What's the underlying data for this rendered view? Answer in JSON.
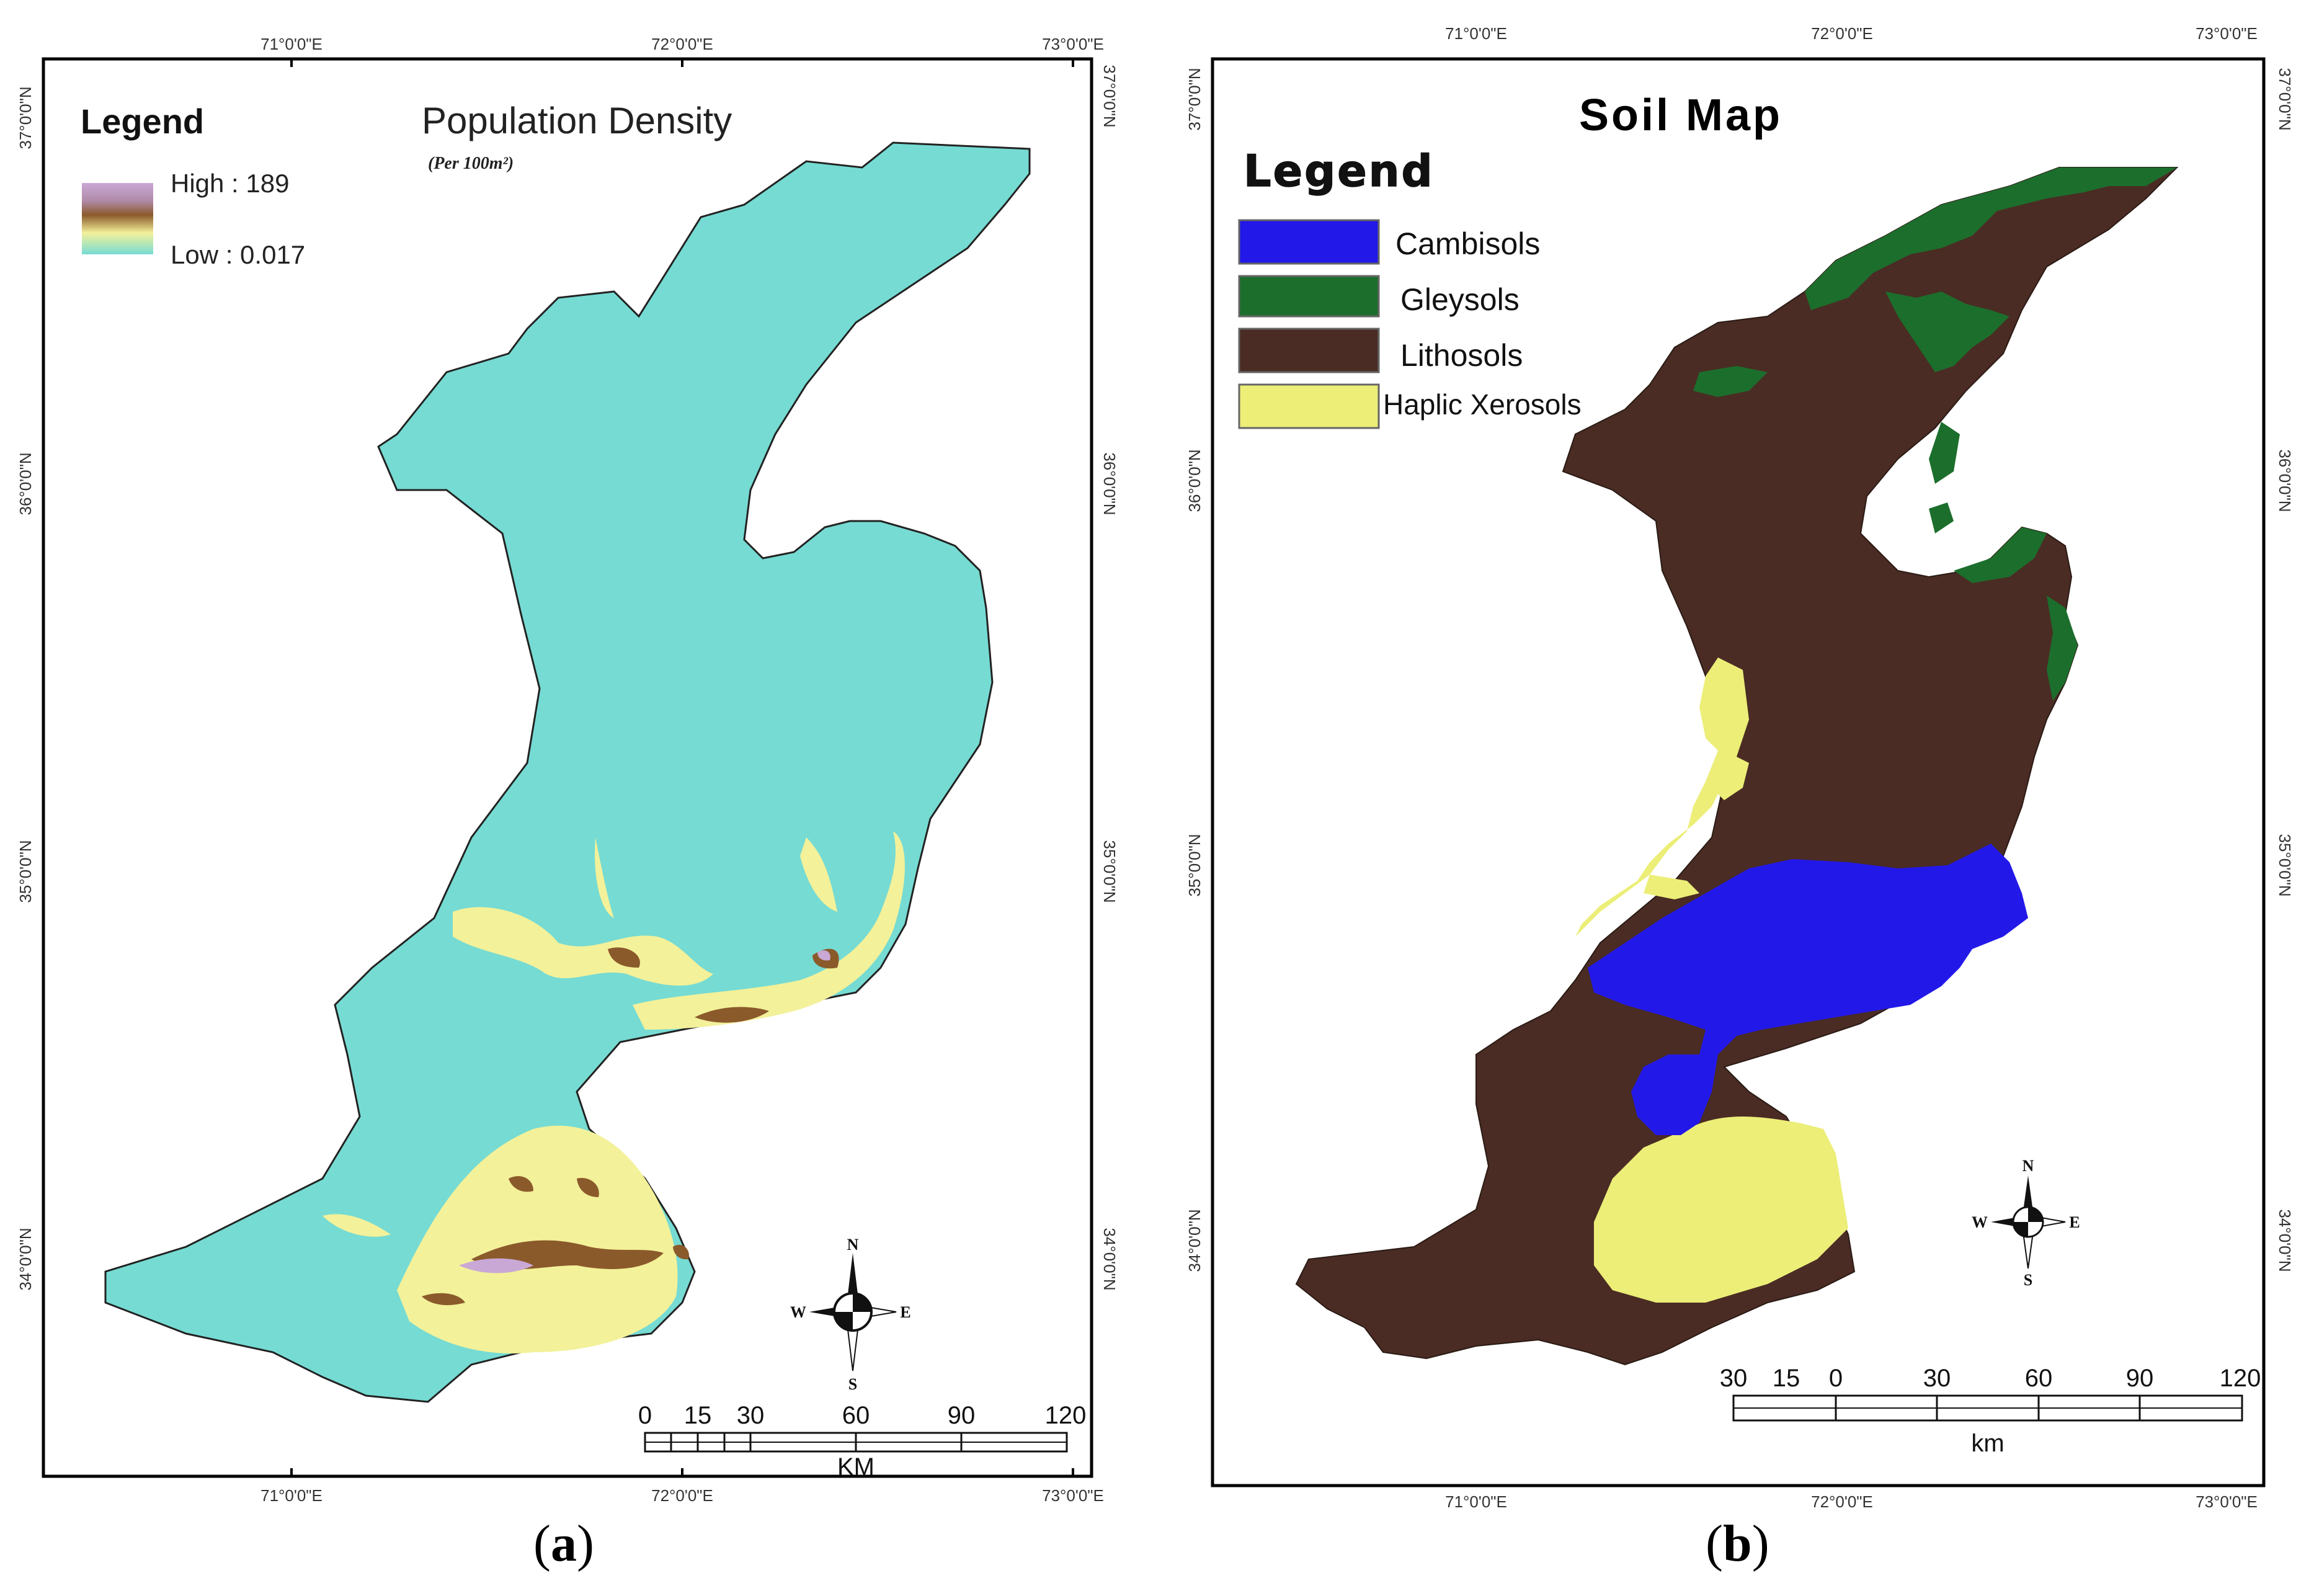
{
  "panel_a": {
    "title": "Population Density",
    "subtitle": "(Per  100m²)",
    "legend_title": "Legend",
    "legend_high": "High : 189",
    "legend_low": "Low : 0.017",
    "lon_labels": [
      "71°0'0\"E",
      "72°0'0\"E",
      "73°0'0\"E"
    ],
    "lat_labels": [
      "37°0'0\"N",
      "36°0'0\"N",
      "35°0'0\"N",
      "34°0'0\"N"
    ],
    "scale_labels": [
      "0",
      "15",
      "30",
      "60",
      "90",
      "120"
    ],
    "scale_unit": "KM",
    "compass": {
      "n": "N",
      "s": "S",
      "e": "E",
      "w": "W"
    },
    "caption": "a",
    "colors": {
      "background_density": "#76dbd3",
      "low_mid": "#f3f19a",
      "mid": "#8b5a2b",
      "high": "#c9a8d6"
    }
  },
  "panel_b": {
    "title": "Soil Map",
    "legend_title": "Legend",
    "legend_items": [
      {
        "label": "Cambisols",
        "color": "#2218e8"
      },
      {
        "label": "Gleysols",
        "color": "#1c6e2c"
      },
      {
        "label": "Lithosols",
        "color": "#4a2c24"
      },
      {
        "label": "Haplic Xerosols",
        "color": "#ecee78"
      }
    ],
    "lon_labels": [
      "71°0'0\"E",
      "72°0'0\"E",
      "73°0'0\"E"
    ],
    "lat_labels": [
      "37°0'0\"N",
      "36°0'0\"N",
      "35°0'0\"N",
      "34°0'0\"N"
    ],
    "scale_labels": [
      "30",
      "15",
      "0",
      "30",
      "60",
      "90",
      "120"
    ],
    "scale_unit": "km",
    "compass": {
      "n": "N",
      "s": "S",
      "e": "E",
      "w": "W"
    },
    "caption": "b"
  }
}
